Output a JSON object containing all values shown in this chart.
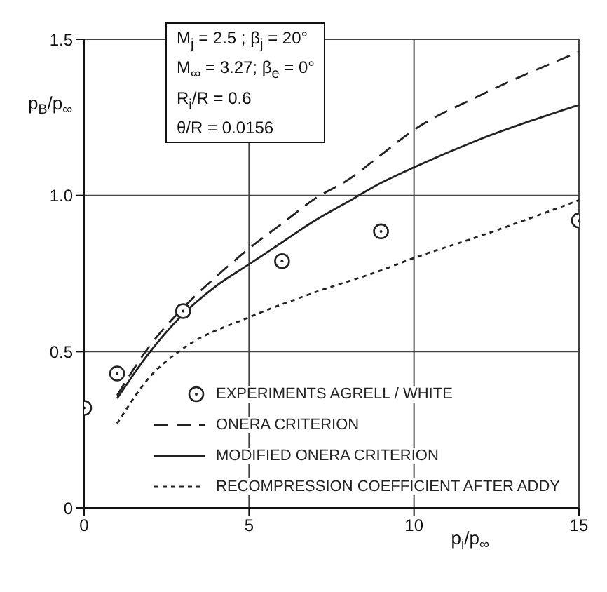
{
  "chart_data": {
    "type": "line",
    "xlabel": "p$_{i}$/p$_{∞}$",
    "ylabel": "p$_{B}$/p$_{∞}$",
    "xlim": [
      0,
      15
    ],
    "xticks": [
      0,
      5,
      10,
      15
    ],
    "ylim": [
      0,
      1.5
    ],
    "yticks": [
      0,
      0.5,
      {
        "value": 1,
        "label": "1.0"
      },
      1.5
    ],
    "grid": true,
    "legend": "bottom right",
    "annotations": [
      "M$_{j}$ = 2.5 ; β$_{j}$ = 20°",
      "M$_{∞}$ = 3.27; β$_{e}$ = 0°",
      "R$_{i}$/R = 0.6",
      "θ/R = 0.0156"
    ],
    "series": [
      {
        "name": "EXPERIMENTS  AGRELL / WHITE",
        "type": "scatter",
        "color": "#222222",
        "marker": "circle",
        "x": [
          0,
          1,
          3,
          6,
          9,
          15
        ],
        "values": [
          0.32,
          0.43,
          0.63,
          0.79,
          0.885,
          0.92
        ]
      },
      {
        "name": "ONERA CRITERION",
        "color": "#222222",
        "line_style": "dashed",
        "x": [
          1,
          2,
          3,
          4,
          5,
          6,
          7,
          8,
          9,
          10,
          12,
          15
        ],
        "values": [
          0.36,
          0.52,
          0.64,
          0.74,
          0.83,
          0.91,
          0.99,
          1.05,
          1.13,
          1.21,
          1.32,
          1.46
        ]
      },
      {
        "name": "MODIFIED ONERA CRITERION",
        "color": "#222222",
        "line_style": "solid",
        "x": [
          1,
          2,
          3,
          4,
          5,
          6,
          7,
          8,
          9,
          10,
          12,
          15
        ],
        "values": [
          0.35,
          0.5,
          0.62,
          0.71,
          0.78,
          0.85,
          0.92,
          0.98,
          1.04,
          1.09,
          1.18,
          1.29
        ]
      },
      {
        "name": "RECOMPRESSION COEFFICIENT AFTER ADDY",
        "color": "#222222",
        "line_style": "dotted",
        "x": [
          1,
          2,
          3,
          5,
          7,
          9,
          10,
          12,
          15
        ],
        "values": [
          0.27,
          0.42,
          0.51,
          0.61,
          0.69,
          0.76,
          0.8,
          0.87,
          0.985
        ]
      }
    ]
  }
}
